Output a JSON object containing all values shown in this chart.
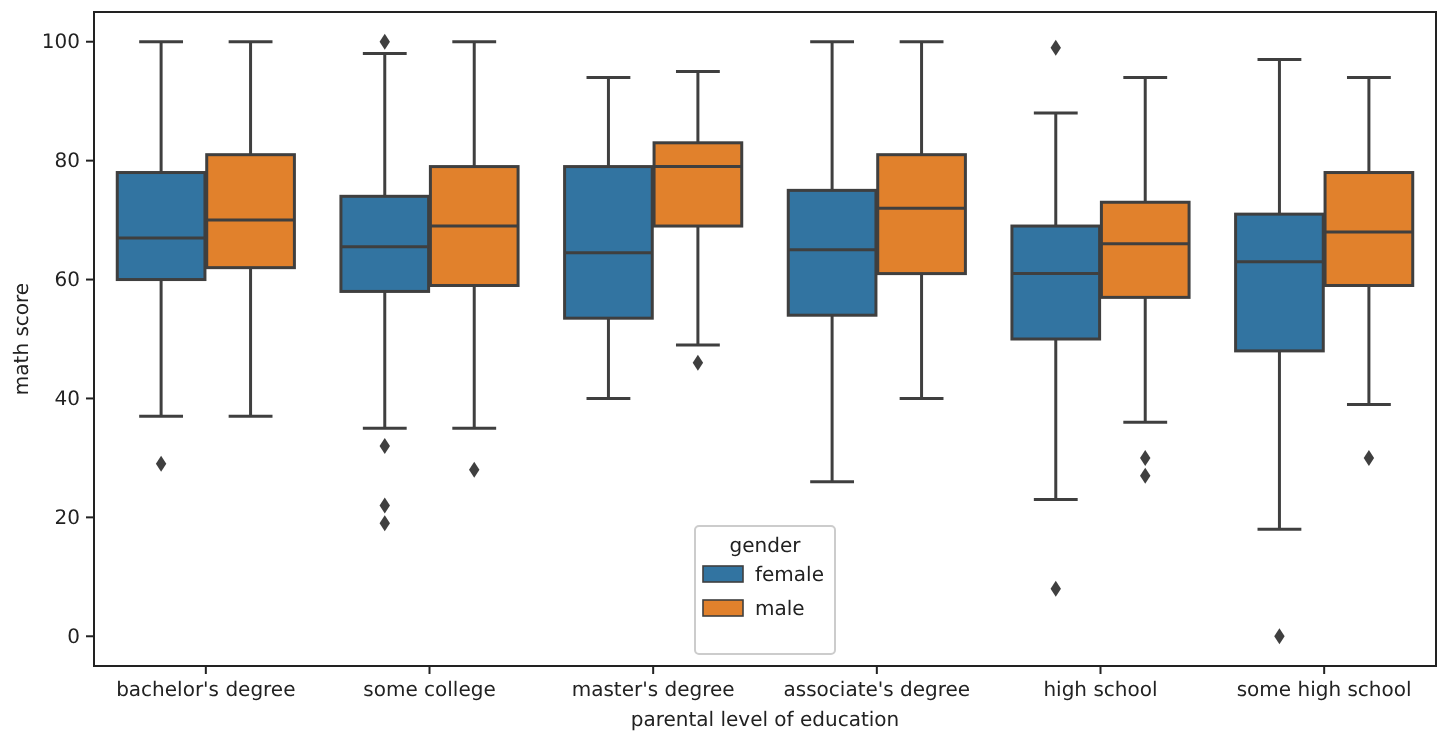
{
  "chart_data": {
    "type": "box",
    "xlabel": "parental level of education",
    "ylabel": "math score",
    "legend_title": "gender",
    "legend": "bottom",
    "ylim": [
      -5,
      105
    ],
    "yticks": [
      0,
      20,
      40,
      60,
      80,
      100
    ],
    "categories": [
      "bachelor's degree",
      "some college",
      "master's degree",
      "associate's degree",
      "high school",
      "some high school"
    ],
    "series": [
      {
        "name": "female",
        "color": "#3274a1",
        "boxes": [
          {
            "low": 37,
            "q1": 60,
            "median": 67,
            "q3": 78,
            "high": 100,
            "outliers": [
              29
            ]
          },
          {
            "low": 35,
            "q1": 58,
            "median": 65.5,
            "q3": 74,
            "high": 98,
            "outliers": [
              100,
              32,
              22,
              19
            ]
          },
          {
            "low": 40,
            "q1": 53.5,
            "median": 64.5,
            "q3": 79,
            "high": 94
          },
          {
            "low": 26,
            "q1": 54,
            "median": 65,
            "q3": 75,
            "high": 100
          },
          {
            "low": 23,
            "q1": 50,
            "median": 61,
            "q3": 69,
            "high": 88,
            "outliers": [
              99,
              8
            ]
          },
          {
            "low": 18,
            "q1": 48,
            "median": 63,
            "q3": 71,
            "high": 97,
            "outliers": [
              0
            ]
          }
        ]
      },
      {
        "name": "male",
        "color": "#e1812c",
        "boxes": [
          {
            "low": 37,
            "q1": 62,
            "median": 70,
            "q3": 81,
            "high": 100
          },
          {
            "low": 35,
            "q1": 59,
            "median": 69,
            "q3": 79,
            "high": 100,
            "outliers": [
              28
            ]
          },
          {
            "low": 49,
            "q1": 69,
            "median": 79,
            "q3": 83,
            "high": 95,
            "outliers": [
              46
            ]
          },
          {
            "low": 40,
            "q1": 61,
            "median": 72,
            "q3": 81,
            "high": 100
          },
          {
            "low": 36,
            "q1": 57,
            "median": 66,
            "q3": 73,
            "high": 94,
            "outliers": [
              30,
              27
            ]
          },
          {
            "low": 39,
            "q1": 59,
            "median": 68,
            "q3": 78,
            "high": 94,
            "outliers": [
              30
            ]
          }
        ]
      }
    ]
  }
}
